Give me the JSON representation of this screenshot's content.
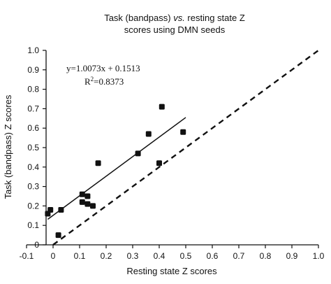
{
  "chart_data": {
    "type": "scatter",
    "title_line1_a": "Task (bandpass) ",
    "title_line1_b": "vs.",
    "title_line1_c": " resting state Z",
    "title_line2": "scores using DMN seeds",
    "xlabel": "Resting state Z scores",
    "ylabel": "Task (bandpass) Z scores",
    "xlim": [
      -0.1,
      1.0
    ],
    "ylim": [
      0.0,
      1.0
    ],
    "xticks": [
      "-0.1",
      "0",
      "0.1",
      "0.2",
      "0.3",
      "0.4",
      "0.5",
      "0.6",
      "0.7",
      "0.8",
      "0.9",
      "1.0"
    ],
    "yticks": [
      "0",
      "0.1",
      "0.2",
      "0.3",
      "0.4",
      "0.5",
      "0.6",
      "0.7",
      "0.8",
      "0.9",
      "1.0"
    ],
    "points": [
      {
        "x": -0.02,
        "y": 0.16
      },
      {
        "x": -0.01,
        "y": 0.18
      },
      {
        "x": 0.02,
        "y": 0.05
      },
      {
        "x": 0.03,
        "y": 0.18
      },
      {
        "x": 0.11,
        "y": 0.22
      },
      {
        "x": 0.11,
        "y": 0.26
      },
      {
        "x": 0.13,
        "y": 0.25
      },
      {
        "x": 0.13,
        "y": 0.21
      },
      {
        "x": 0.15,
        "y": 0.2
      },
      {
        "x": 0.17,
        "y": 0.42
      },
      {
        "x": 0.32,
        "y": 0.47
      },
      {
        "x": 0.36,
        "y": 0.57
      },
      {
        "x": 0.4,
        "y": 0.42
      },
      {
        "x": 0.41,
        "y": 0.71
      },
      {
        "x": 0.49,
        "y": 0.58
      }
    ],
    "fit_line": {
      "slope": 1.0073,
      "intercept": 0.1513,
      "x_start": -0.02,
      "x_end": 0.5
    },
    "identity_line": {
      "style": "dashed",
      "from": [
        0,
        0
      ],
      "to": [
        1.0,
        1.0
      ]
    },
    "annotation_eq": "y=1.0073x + 0.1513",
    "annotation_r2_prefix": "R",
    "annotation_r2_sup": "2",
    "annotation_r2_value": "=0.8373",
    "grid": false
  }
}
